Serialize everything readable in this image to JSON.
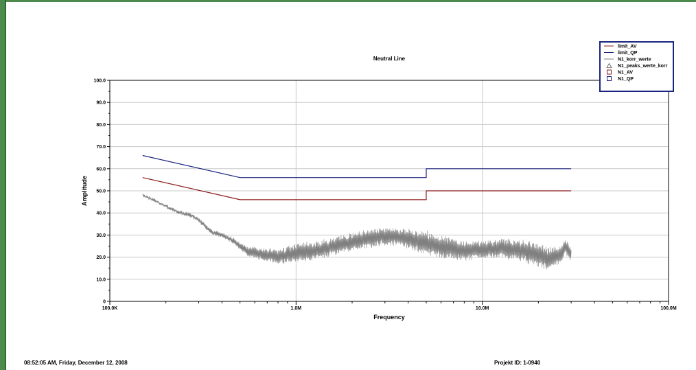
{
  "chart_data": {
    "type": "line",
    "title": "Neutral Line",
    "xlabel": "Frequency",
    "ylabel": "Amplitude",
    "x_scale": "log",
    "xlim": [
      100000,
      100000000
    ],
    "ylim": [
      0,
      100
    ],
    "x_ticks": [
      {
        "value": 100000,
        "label": "100.0K"
      },
      {
        "value": 1000000,
        "label": "1.0M"
      },
      {
        "value": 10000000,
        "label": "10.0M"
      },
      {
        "value": 100000000,
        "label": "100.0M"
      }
    ],
    "y_ticks": [
      {
        "value": 0,
        "label": "0"
      },
      {
        "value": 10,
        "label": "10.0"
      },
      {
        "value": 20,
        "label": "20.0"
      },
      {
        "value": 30,
        "label": "30.0"
      },
      {
        "value": 40,
        "label": "40.0"
      },
      {
        "value": 50,
        "label": "50.0"
      },
      {
        "value": 60,
        "label": "60.0"
      },
      {
        "value": 70,
        "label": "70.0"
      },
      {
        "value": 80,
        "label": "80.0"
      },
      {
        "value": 90,
        "label": "90.0"
      },
      {
        "value": 100,
        "label": "100.0"
      }
    ],
    "grid": true,
    "legend_position": "top-right",
    "series": [
      {
        "name": "limit_AV",
        "color": "#8b1a1a",
        "points": [
          [
            150000,
            56
          ],
          [
            500000,
            46
          ],
          [
            5000000,
            46
          ],
          [
            5000000,
            50
          ],
          [
            30000000,
            50
          ]
        ]
      },
      {
        "name": "limit_QP",
        "color": "#1a237e",
        "points": [
          [
            150000,
            66
          ],
          [
            500000,
            56
          ],
          [
            5000000,
            56
          ],
          [
            5000000,
            60
          ],
          [
            30000000,
            60
          ]
        ]
      },
      {
        "name": "N1_korr_werte",
        "color": "#808080",
        "points": [
          [
            150000,
            48
          ],
          [
            170000,
            46
          ],
          [
            200000,
            43
          ],
          [
            230000,
            40.5
          ],
          [
            270000,
            39
          ],
          [
            300000,
            37
          ],
          [
            350000,
            31.5
          ],
          [
            400000,
            30
          ],
          [
            450000,
            28
          ],
          [
            500000,
            25
          ],
          [
            550000,
            22.5
          ],
          [
            600000,
            22
          ],
          [
            700000,
            21
          ],
          [
            800000,
            20
          ],
          [
            900000,
            21
          ],
          [
            1000000,
            22
          ],
          [
            1300000,
            23
          ],
          [
            1600000,
            25
          ],
          [
            2000000,
            27
          ],
          [
            2500000,
            28.5
          ],
          [
            3000000,
            29.5
          ],
          [
            3500000,
            29
          ],
          [
            4000000,
            28
          ],
          [
            5000000,
            26.5
          ],
          [
            6000000,
            24.5
          ],
          [
            8000000,
            23
          ],
          [
            10000000,
            23.5
          ],
          [
            13000000,
            24
          ],
          [
            16000000,
            23
          ],
          [
            20000000,
            21
          ],
          [
            23000000,
            19
          ],
          [
            26000000,
            21
          ],
          [
            28000000,
            25
          ],
          [
            30000000,
            21
          ]
        ],
        "spread": [
          [
            150000,
            0.6
          ],
          [
            400000,
            1
          ],
          [
            500000,
            1.5
          ],
          [
            600000,
            2.5
          ],
          [
            1000000,
            4
          ],
          [
            1500000,
            4
          ],
          [
            2500000,
            4
          ],
          [
            3500000,
            4
          ],
          [
            5000000,
            5.5
          ],
          [
            8000000,
            4.5
          ],
          [
            12000000,
            4
          ],
          [
            17000000,
            5
          ],
          [
            22000000,
            5.5
          ],
          [
            30000000,
            3
          ]
        ]
      },
      {
        "name": "N1_peaks_werte_korr",
        "color": "#555555",
        "marker": "triangle",
        "points": []
      },
      {
        "name": "N1_AV",
        "color": "#8b1a1a",
        "marker": "square",
        "points": []
      },
      {
        "name": "N1_QP",
        "color": "#1a237e",
        "marker": "square",
        "points": []
      }
    ]
  },
  "footer": {
    "timestamp": "08:52:05 AM, Friday, December 12, 2008",
    "project": "Projekt ID: 1-0940"
  }
}
